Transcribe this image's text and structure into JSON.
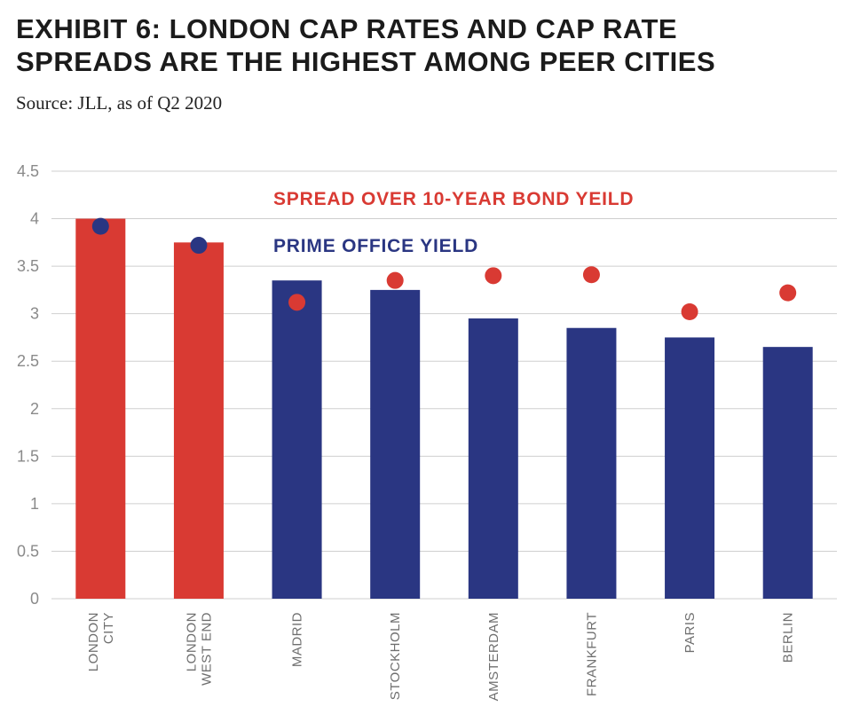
{
  "header": {
    "title_line1": "EXHIBIT 6: LONDON CAP RATES AND CAP RATE",
    "title_line2": "SPREADS ARE THE HIGHEST AMONG PEER CITIES",
    "source": "Source: JLL, as of Q2 2020"
  },
  "colors": {
    "red": "#d93a33",
    "navy": "#2a3682",
    "grid": "#cfcfcf"
  },
  "chart_data": {
    "type": "bar",
    "categories": [
      [
        "LONDON",
        "CITY"
      ],
      [
        "LONDON",
        "WEST END"
      ],
      [
        "MADRID"
      ],
      [
        "STOCKHOLM"
      ],
      [
        "AMSTERDAM"
      ],
      [
        "FRANKFURT"
      ],
      [
        "PARIS"
      ],
      [
        "BERLIN"
      ]
    ],
    "series": [
      {
        "name": "PRIME OFFICE YIELD",
        "marker": "bar",
        "values": [
          4.0,
          3.75,
          3.35,
          3.25,
          2.95,
          2.85,
          2.75,
          2.65
        ],
        "bar_colors": [
          "red",
          "red",
          "navy",
          "navy",
          "navy",
          "navy",
          "navy",
          "navy"
        ]
      },
      {
        "name": "SPREAD OVER 10-YEAR BOND YEILD",
        "marker": "dot",
        "values": [
          3.92,
          3.72,
          3.12,
          3.35,
          3.4,
          3.41,
          3.02,
          3.22
        ],
        "dot_colors": [
          "navy",
          "navy",
          "red",
          "red",
          "red",
          "red",
          "red",
          "red"
        ]
      }
    ],
    "ylim": [
      0,
      4.5
    ],
    "yticks": [
      "0",
      "0.5",
      "1",
      "1.5",
      "2",
      "2.5",
      "3",
      "3.5",
      "4",
      "4.5"
    ],
    "ytick_values": [
      0,
      0.5,
      1,
      1.5,
      2,
      2.5,
      3,
      3.5,
      4,
      4.5
    ],
    "grid": true,
    "legend_placement": "top-center, inside plot"
  }
}
